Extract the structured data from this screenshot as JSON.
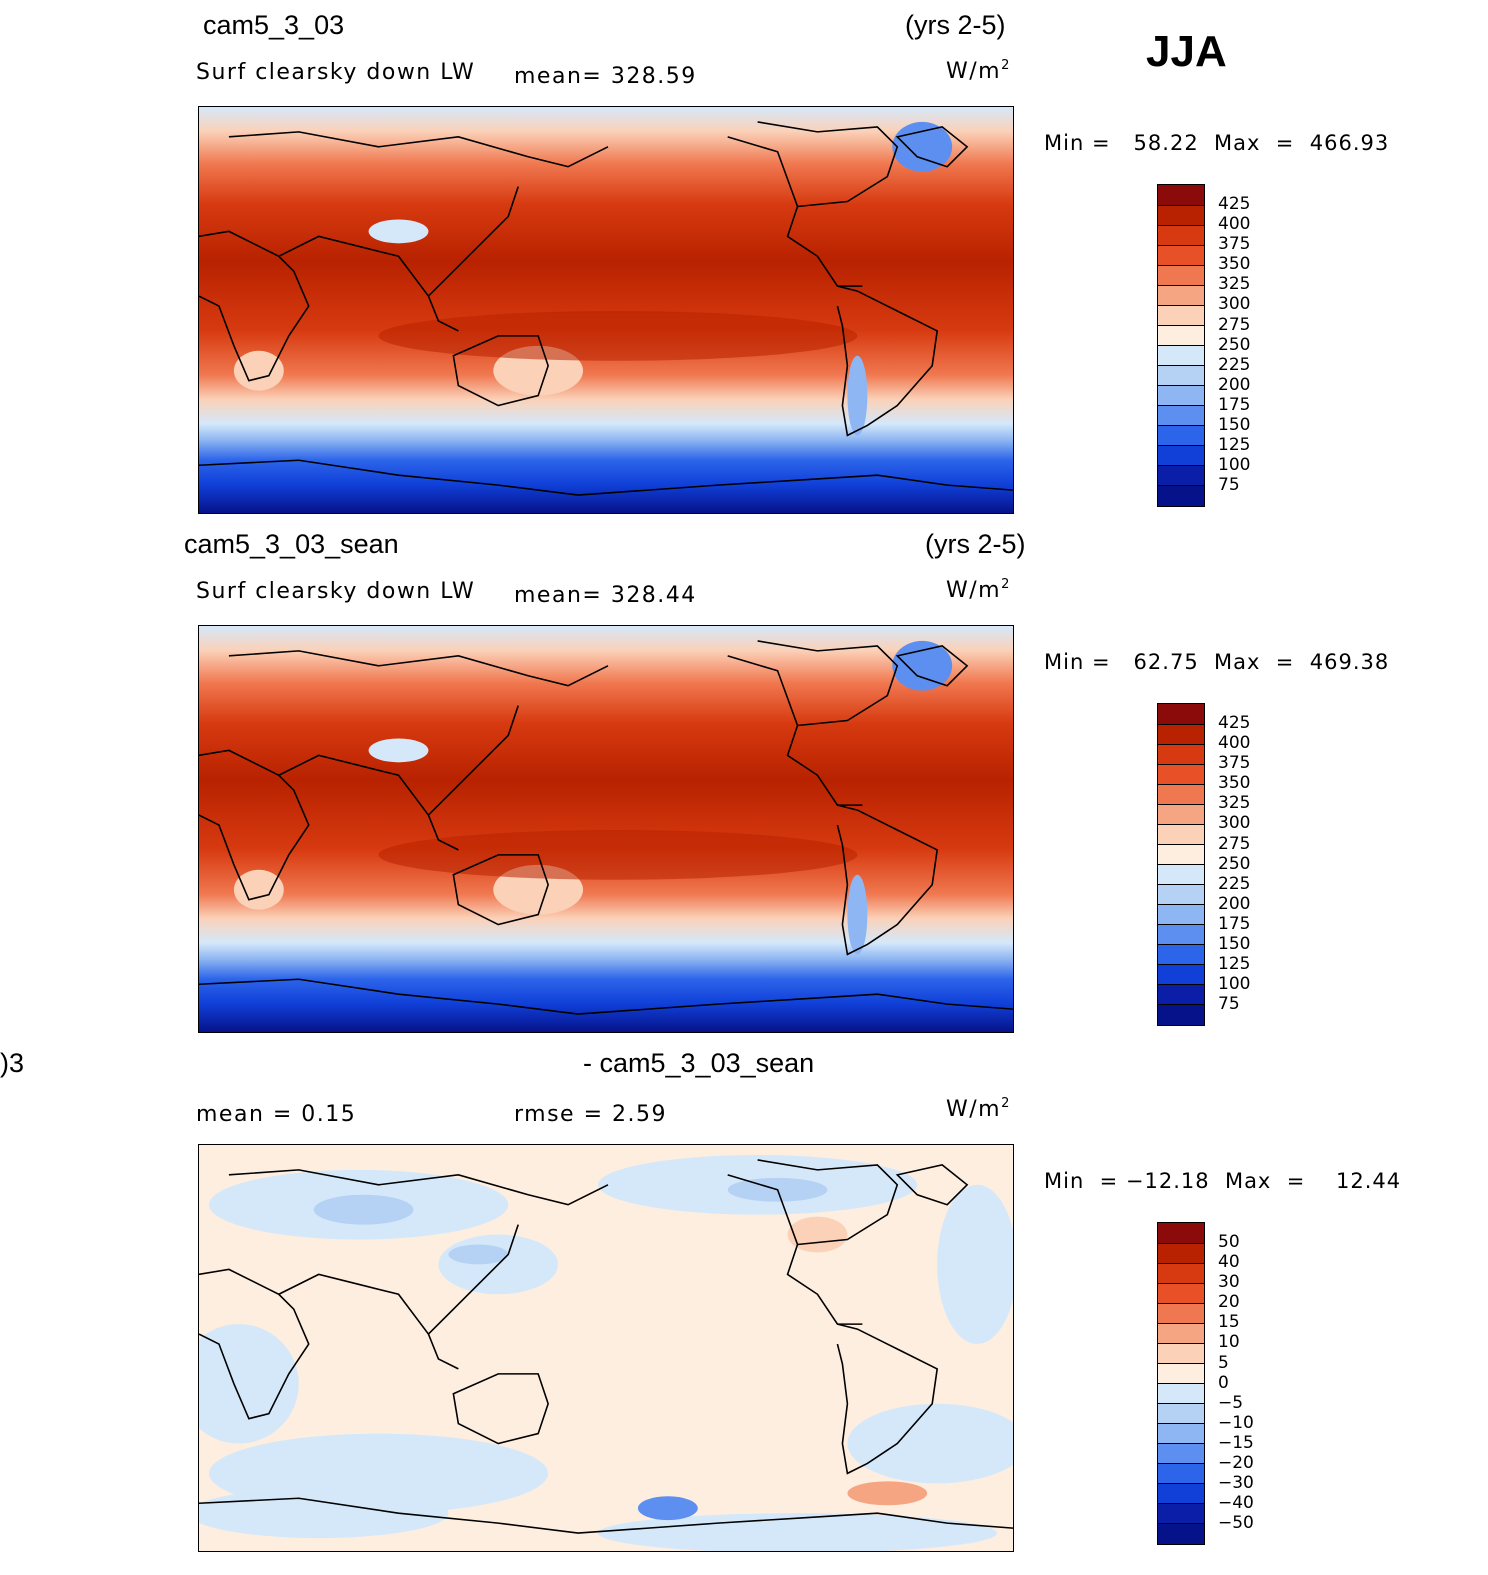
{
  "season": "JJA",
  "panels": [
    {
      "case_name": "cam5_3_03",
      "years": "(yrs 2-5)",
      "variable": "Surf clearsky down LW",
      "stat1": "mean=  328.59",
      "units_base": "W/m",
      "units_exp": "2",
      "minmax": "Min =   58.22  Max  =  466.93",
      "colorbar_levels": [
        "425",
        "400",
        "375",
        "350",
        "325",
        "300",
        "275",
        "250",
        "225",
        "200",
        "175",
        "150",
        "125",
        "100",
        "75"
      ]
    },
    {
      "case_name": "cam5_3_03_sean",
      "years": "(yrs 2-5)",
      "variable": "Surf clearsky down LW",
      "stat1": "mean=  328.44",
      "units_base": "W/m",
      "units_exp": "2",
      "minmax": "Min =   62.75  Max  =  469.38",
      "colorbar_levels": [
        "425",
        "400",
        "375",
        "350",
        "325",
        "300",
        "275",
        "250",
        "225",
        "200",
        "175",
        "150",
        "125",
        "100",
        "75"
      ]
    },
    {
      "case_name_left": ")3",
      "case_name": "- cam5_3_03_sean",
      "stat_mean": "mean  =     0.15",
      "stat_rmse": "rmse  =     2.59",
      "units_base": "W/m",
      "units_exp": "2",
      "minmax": "Min  = −12.18  Max  =    12.44",
      "colorbar_levels": [
        "50",
        "40",
        "30",
        "20",
        "15",
        "10",
        "5",
        "0",
        "−5",
        "−10",
        "−15",
        "−20",
        "−30",
        "−40",
        "−50"
      ]
    }
  ],
  "colors": {
    "colorbar_fills": [
      "#8b0a0a",
      "#b82200",
      "#d73a10",
      "#e85028",
      "#f07850",
      "#f6a582",
      "#fbd1b8",
      "#fdeee0",
      "#d5e8fa",
      "#b5d2f5",
      "#8eb6f2",
      "#5d8ff0",
      "#2c64ea",
      "#1040d8",
      "#0a1ea8",
      "#06128a"
    ],
    "coastline": "#000000"
  }
}
